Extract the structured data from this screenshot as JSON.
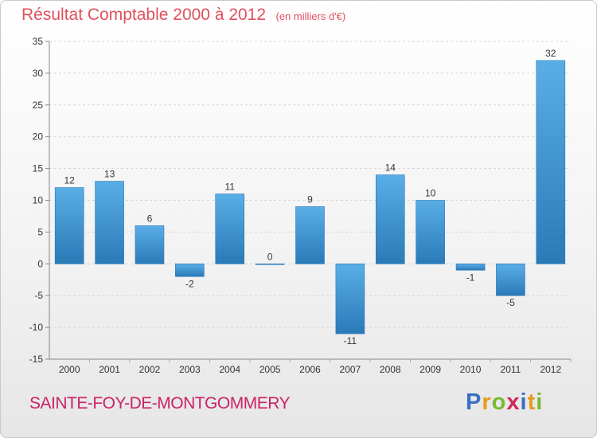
{
  "chart_data": {
    "type": "bar",
    "title": "Résultat Comptable 2000 à 2012",
    "subtitle": "(en milliers d'€)",
    "categories": [
      "2000",
      "2001",
      "2002",
      "2003",
      "2004",
      "2005",
      "2006",
      "2007",
      "2008",
      "2009",
      "2010",
      "2011",
      "2012"
    ],
    "values": [
      12,
      13,
      6,
      -2,
      11,
      0,
      9,
      -11,
      14,
      10,
      -1,
      -5,
      32
    ],
    "data_labels": [
      "12",
      "13",
      "6",
      "-2",
      "11",
      "0",
      "9",
      "-11",
      "14",
      "10",
      "-1",
      "-5",
      "32"
    ],
    "ylim": [
      -15,
      35
    ],
    "yticks": [
      35,
      30,
      25,
      20,
      15,
      10,
      5,
      0,
      -5,
      -10,
      -15
    ],
    "grid": true,
    "bar_color_light": "#5aaee6",
    "bar_color_dark": "#2a7ab8"
  },
  "footer": {
    "commune": "SAINTE-FOY-DE-MONTGOMMERY",
    "logo_letters": [
      "P",
      "r",
      "o",
      "x",
      "i",
      "t",
      "i"
    ],
    "logo_colors": [
      "#3a6fc4",
      "#e89a1c",
      "#7ab830",
      "#d02a5a",
      "#3a6fc4",
      "#e89a1c",
      "#7ab830"
    ]
  }
}
